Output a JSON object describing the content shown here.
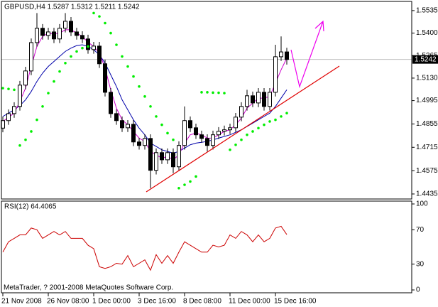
{
  "chart_data": [
    {
      "type": "candlestick",
      "title": "GBPUSD,H4 1.5287 1.5312 1.5211 1.5242",
      "categories": [
        "21 Nov 2008",
        null,
        null,
        null,
        null,
        null,
        null,
        null,
        "26 Nov 08:00",
        null,
        null,
        null,
        null,
        null,
        null,
        null,
        "1 Dec 00:00",
        null,
        null,
        null,
        null,
        null,
        null,
        null,
        "3 Dec 16:00",
        null,
        null,
        null,
        null,
        null,
        null,
        null,
        "8 Dec 08:00",
        null,
        null,
        null,
        null,
        null,
        null,
        null,
        "11 Dec 00:00",
        null,
        null,
        null,
        null,
        null,
        null,
        null,
        "15 Dec 16:00",
        null,
        null
      ],
      "open": [
        1.483,
        1.4875,
        1.4917,
        1.496,
        1.5088,
        1.5173,
        1.5343,
        1.5429,
        1.5386,
        1.5407,
        1.5365,
        1.5429,
        1.5471,
        1.5407,
        1.5386,
        1.5365,
        1.5301,
        1.5322,
        1.5216,
        1.5045,
        1.4917,
        1.4875,
        1.4832,
        1.4853,
        1.4747,
        1.4726,
        1.4768,
        1.4577,
        1.4683,
        1.464,
        1.4683,
        1.4598,
        1.4726,
        1.4875,
        1.4832,
        1.479,
        1.4768,
        1.4726,
        1.479,
        1.4811,
        1.482,
        1.4832,
        1.4896,
        1.496,
        1.5024,
        1.4981,
        1.5045,
        1.496,
        1.5045,
        1.5258,
        1.5287
      ],
      "high": [
        1.49,
        1.4942,
        1.4985,
        1.5113,
        1.5198,
        1.5368,
        1.552,
        1.5454,
        1.5432,
        1.5432,
        1.5454,
        1.552,
        1.5496,
        1.5432,
        1.5411,
        1.539,
        1.5347,
        1.5347,
        1.5241,
        1.507,
        1.4942,
        1.49,
        1.4878,
        1.4878,
        1.4772,
        1.4793,
        1.4793,
        1.4708,
        1.4708,
        1.4708,
        1.4708,
        1.4751,
        1.496,
        1.49,
        1.4857,
        1.4815,
        1.4793,
        1.4815,
        1.4836,
        1.4845,
        1.4857,
        1.4921,
        1.4985,
        1.506,
        1.5049,
        1.507,
        1.507,
        1.507,
        1.533,
        1.538,
        1.5312
      ],
      "low": [
        1.4805,
        1.485,
        1.4892,
        1.4935,
        1.5063,
        1.5148,
        1.5318,
        1.5361,
        1.5361,
        1.534,
        1.534,
        1.5404,
        1.5382,
        1.5361,
        1.534,
        1.5276,
        1.5276,
        1.5191,
        1.502,
        1.4892,
        1.485,
        1.4807,
        1.4807,
        1.4722,
        1.4701,
        1.4701,
        1.447,
        1.4552,
        1.4615,
        1.4615,
        1.456,
        1.4573,
        1.4701,
        1.4807,
        1.4765,
        1.4743,
        1.469,
        1.4701,
        1.4765,
        1.4786,
        1.4795,
        1.4807,
        1.4871,
        1.4935,
        1.4956,
        1.4956,
        1.4935,
        1.4935,
        1.502,
        1.5233,
        1.5211
      ],
      "close": [
        1.4875,
        1.4917,
        1.496,
        1.5088,
        1.5173,
        1.5343,
        1.5429,
        1.5386,
        1.5407,
        1.5365,
        1.5429,
        1.5471,
        1.5407,
        1.5386,
        1.5365,
        1.5301,
        1.5322,
        1.5216,
        1.5045,
        1.4917,
        1.4875,
        1.4832,
        1.4853,
        1.4747,
        1.4726,
        1.4768,
        1.4577,
        1.4683,
        1.464,
        1.4683,
        1.4598,
        1.4726,
        1.4875,
        1.4832,
        1.479,
        1.4768,
        1.4726,
        1.479,
        1.4811,
        1.482,
        1.4832,
        1.4896,
        1.496,
        1.5024,
        1.4981,
        1.5045,
        1.496,
        1.5045,
        1.5258,
        1.5287,
        1.5242
      ],
      "up_color": "#ffffff",
      "down_color": "#000000",
      "outline_color": "#000000",
      "lines": [
        {
          "color": "#0000aa",
          "values": [
            1.49,
            1.492,
            1.494,
            1.4965,
            1.5,
            1.505,
            1.511,
            1.516,
            1.52,
            1.523,
            1.526,
            1.529,
            1.531,
            1.5325,
            1.533,
            1.532,
            1.53,
            1.527,
            1.522,
            1.515,
            1.508,
            1.5,
            1.494,
            1.488,
            1.483,
            1.479,
            1.474,
            1.472,
            1.47,
            1.469,
            1.468,
            1.469,
            1.471,
            1.473,
            1.474,
            1.4745,
            1.475,
            1.476,
            1.477,
            1.478,
            1.479,
            1.4805,
            1.482,
            1.484,
            1.486,
            1.488,
            1.49,
            1.492,
            1.496,
            1.501,
            1.506
          ]
        },
        {
          "color": "#cc00cc",
          "values": [
            1.487,
            1.4895,
            1.492,
            1.499,
            1.507,
            1.52,
            1.532,
            1.538,
            1.54,
            1.5395,
            1.54,
            1.542,
            1.542,
            1.54,
            1.538,
            1.5345,
            1.532,
            1.528,
            1.519,
            1.506,
            1.495,
            1.488,
            1.485,
            1.481,
            1.477,
            1.475,
            1.469,
            1.467,
            1.465,
            1.466,
            1.464,
            1.467,
            1.474,
            1.479,
            1.48,
            1.479,
            1.477,
            1.477,
            1.479,
            1.481,
            1.482,
            1.485,
            1.489,
            1.495,
            1.498,
            1.501,
            1.501,
            1.502,
            1.51,
            1.518,
            1.525
          ]
        }
      ],
      "sar": {
        "color": "#00ee00",
        "values": [
          1.507,
          1.5065,
          1.506,
          1.4726,
          1.476,
          1.481,
          1.488,
          1.496,
          1.504,
          1.511,
          1.517,
          1.522,
          1.526,
          1.529,
          1.531,
          1.532,
          1.552,
          1.55,
          1.546,
          1.54,
          1.533,
          1.526,
          1.52,
          1.514,
          1.508,
          1.502,
          1.496,
          1.49,
          1.485,
          1.48,
          1.476,
          1.447,
          1.449,
          1.451,
          1.454,
          1.5045,
          1.5045,
          1.5043,
          1.5042,
          1.504,
          1.47,
          1.473,
          1.476,
          1.479,
          1.481,
          1.483,
          1.485,
          1.487,
          1.488,
          1.49,
          1.492
        ]
      },
      "last_price": 1.5242,
      "ylim": [
        1.4405,
        1.559
      ],
      "yticks": [
        1.5535,
        {
          "value": 1.54,
          "label": "1.5400"
        },
        1.5265,
        {
          "value": 1.513,
          "label": "1.5130"
        },
        1.4995,
        1.4855,
        1.4715,
        1.4575,
        1.4435
      ]
    },
    {
      "type": "line",
      "title": "RSI(12) 64.4065",
      "annotation": "MetaTrader, ? 2001-2008 MetaQuotes Software Corp.",
      "color": "#cc0000",
      "values": [
        44,
        56,
        60,
        64,
        64,
        72,
        70,
        60,
        64,
        68,
        64,
        68,
        60,
        60,
        60,
        52,
        48,
        27,
        25,
        27,
        31,
        30,
        40,
        27,
        31,
        35,
        23,
        41,
        31,
        40,
        31,
        44,
        56,
        52,
        48,
        44,
        44,
        52,
        50,
        52,
        64,
        60,
        68,
        64,
        56,
        64,
        56,
        60,
        72,
        74,
        64.4065
      ],
      "ylim": [
        -3.3,
        103.3
      ],
      "yticks": [
        100,
        70,
        30,
        0
      ]
    }
  ]
}
